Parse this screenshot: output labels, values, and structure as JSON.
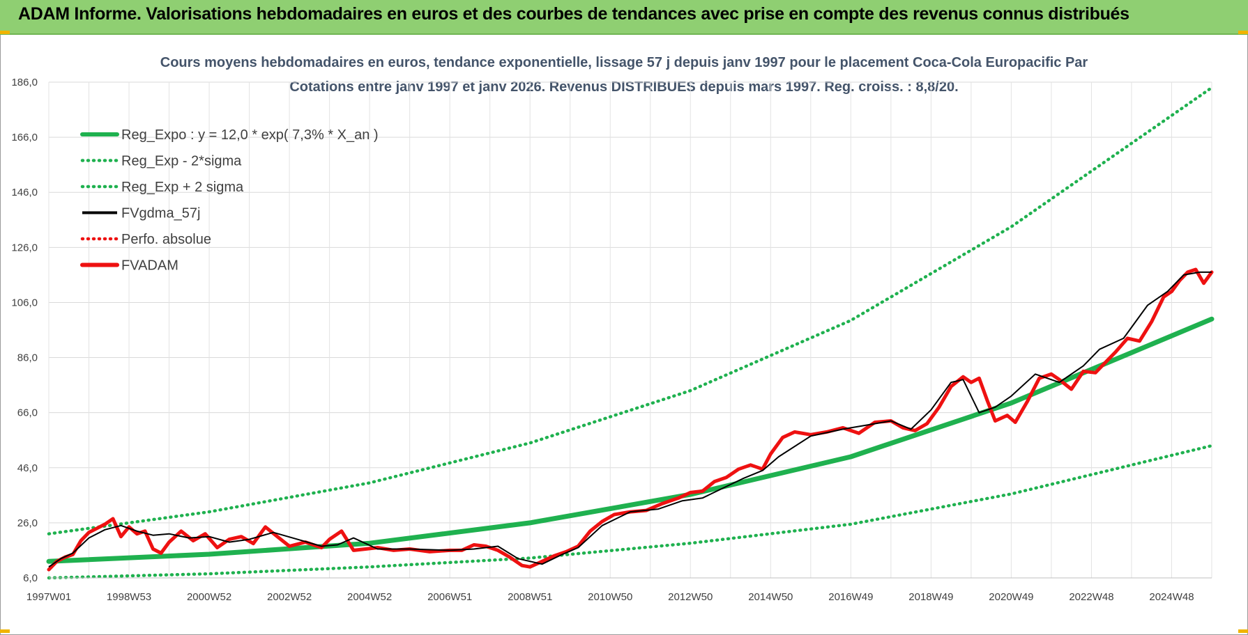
{
  "header": {
    "title": "ADAM Informe. Valorisations hebdomadaires en euros et des courbes de tendances avec prise en compte des revenus connus distribués"
  },
  "colors": {
    "header_bg": "#8fcf72",
    "reg_expo": "#1fb14f",
    "fvgdma": "#000000",
    "fvadam": "#ee1111",
    "grid": "#d9d9d9"
  },
  "chart_data": {
    "type": "line",
    "title_line1": "Cours moyens hebdomadaires en euros, tendance exponentielle, lissage 57 j depuis janv 1997 pour le placement Coca-Cola Europacific Par",
    "title_line2": "Cotations entre janv 1997 et janv 2026. Revenus DISTRIBUES depuis mars 1997.  Reg. croiss. : 8,8/20.",
    "xlabel": "",
    "ylabel": "",
    "xlim": [
      1997.0,
      2026.0
    ],
    "ylim": [
      6.0,
      186.0
    ],
    "y_ticks": [
      "186,0",
      "166,0",
      "146,0",
      "126,0",
      "106,0",
      "86,0",
      "66,0",
      "46,0",
      "26,0",
      "6,0"
    ],
    "x_ticks": [
      "1997W01",
      "1998W53",
      "2000W52",
      "2002W52",
      "2004W52",
      "2006W51",
      "2008W51",
      "2010W50",
      "2012W50",
      "2014W50",
      "2016W49",
      "2018W49",
      "2020W49",
      "2022W48",
      "2024W48"
    ],
    "grid": true,
    "legend_position": "top-left",
    "series": [
      {
        "name": "Reg_Expo : y = 12,0 * exp( 7,3% *  X_an )",
        "style": "solid-thick",
        "color": "#1fb14f",
        "x": [
          1997.0,
          2001.0,
          2005.0,
          2009.0,
          2013.0,
          2017.0,
          2021.0,
          2026.0
        ],
        "y": [
          12.0,
          14.6,
          18.6,
          26.0,
          36.3,
          50.0,
          69.5,
          100.0
        ]
      },
      {
        "name": "Reg_Exp - 2*sigma",
        "style": "dotted",
        "color": "#1fb14f",
        "x": [
          1997.0,
          2001.0,
          2005.0,
          2009.0,
          2013.0,
          2017.0,
          2021.0,
          2026.0
        ],
        "y": [
          6.0,
          7.5,
          10.0,
          13.2,
          18.6,
          25.5,
          36.5,
          54.0
        ]
      },
      {
        "name": "Reg_Exp + 2 sigma",
        "style": "dotted",
        "color": "#1fb14f",
        "x": [
          1997.0,
          2001.0,
          2005.0,
          2009.0,
          2013.0,
          2017.0,
          2021.0,
          2026.0
        ],
        "y": [
          22.0,
          30.0,
          40.5,
          55.0,
          74.0,
          99.5,
          133.5,
          184.0
        ]
      },
      {
        "name": "FVgdma_57j",
        "style": "solid",
        "color": "#000000",
        "x": [
          1997.0,
          1997.3,
          1997.6,
          1998.0,
          1998.4,
          1998.8,
          1999.2,
          1999.6,
          2000.0,
          2000.5,
          2001.0,
          2001.5,
          2002.0,
          2002.6,
          2003.2,
          2003.8,
          2004.2,
          2004.6,
          2005.2,
          2006.0,
          2007.0,
          2007.6,
          2008.2,
          2008.7,
          2009.3,
          2009.8,
          2010.2,
          2010.8,
          2011.5,
          2012.2,
          2012.8,
          2013.3,
          2013.8,
          2014.3,
          2014.8,
          2015.2,
          2016.0,
          2016.8,
          2017.4,
          2018.0,
          2018.5,
          2019.0,
          2019.5,
          2019.8,
          2020.2,
          2020.6,
          2021.0,
          2021.6,
          2022.2,
          2022.8,
          2023.2,
          2023.8,
          2024.4,
          2024.9,
          2025.3,
          2025.7,
          2026.0
        ],
        "y": [
          10.0,
          13.0,
          15.0,
          20.5,
          23.5,
          25.0,
          23.0,
          21.5,
          22.0,
          20.5,
          21.0,
          19.0,
          20.0,
          22.5,
          20.0,
          17.5,
          18.0,
          20.5,
          16.5,
          16.5,
          16.0,
          16.5,
          17.5,
          13.0,
          11.0,
          14.5,
          17.0,
          25.0,
          30.0,
          31.0,
          34.0,
          35.0,
          38.5,
          42.0,
          45.0,
          50.0,
          57.5,
          60.0,
          61.5,
          63.0,
          60.0,
          67.0,
          77.0,
          78.0,
          66.0,
          68.0,
          72.0,
          80.0,
          77.0,
          83.0,
          89.0,
          93.0,
          105.0,
          110.0,
          116.0,
          117.0,
          117.0
        ]
      },
      {
        "name": "Perfo. absolue",
        "style": "dotted",
        "color": "#ee1111",
        "x": [],
        "y": []
      },
      {
        "name": "FVADAM",
        "style": "solid-thick",
        "color": "#ee1111",
        "x": [
          1997.0,
          1997.2,
          1997.4,
          1997.6,
          1997.8,
          1998.0,
          1998.2,
          1998.4,
          1998.6,
          1998.8,
          1999.0,
          1999.2,
          1999.4,
          1999.6,
          1999.8,
          2000.0,
          2000.3,
          2000.6,
          2000.9,
          2001.2,
          2001.5,
          2001.8,
          2002.1,
          2002.4,
          2002.7,
          2003.0,
          2003.4,
          2003.8,
          2004.0,
          2004.3,
          2004.6,
          2004.9,
          2005.2,
          2005.6,
          2006.0,
          2006.5,
          2007.0,
          2007.3,
          2007.6,
          2007.9,
          2008.2,
          2008.5,
          2008.8,
          2009.0,
          2009.3,
          2009.6,
          2009.9,
          2010.2,
          2010.5,
          2010.8,
          2011.1,
          2011.5,
          2011.9,
          2012.3,
          2012.7,
          2013.0,
          2013.3,
          2013.6,
          2013.9,
          2014.2,
          2014.5,
          2014.8,
          2015.0,
          2015.3,
          2015.6,
          2016.0,
          2016.4,
          2016.8,
          2017.2,
          2017.6,
          2018.0,
          2018.3,
          2018.6,
          2018.9,
          2019.2,
          2019.5,
          2019.8,
          2020.0,
          2020.2,
          2020.4,
          2020.6,
          2020.9,
          2021.1,
          2021.4,
          2021.7,
          2022.0,
          2022.2,
          2022.5,
          2022.8,
          2023.1,
          2023.3,
          2023.6,
          2023.9,
          2024.2,
          2024.5,
          2024.8,
          2025.0,
          2025.2,
          2025.4,
          2025.6,
          2025.8,
          2026.0
        ],
        "y": [
          9.0,
          12.0,
          13.5,
          14.5,
          19.5,
          22.5,
          24.0,
          25.5,
          27.5,
          21.0,
          24.5,
          22.0,
          23.0,
          16.5,
          15.0,
          19.0,
          23.0,
          19.5,
          22.0,
          17.0,
          20.0,
          21.0,
          18.5,
          24.5,
          21.0,
          17.5,
          19.0,
          17.0,
          20.0,
          23.0,
          16.0,
          16.5,
          17.0,
          16.0,
          16.5,
          15.5,
          16.0,
          16.0,
          18.0,
          17.5,
          16.0,
          13.5,
          10.5,
          10.0,
          12.0,
          14.0,
          15.5,
          17.5,
          23.0,
          26.5,
          29.0,
          30.0,
          30.5,
          33.0,
          35.0,
          37.0,
          37.5,
          41.0,
          42.5,
          45.5,
          47.0,
          45.5,
          51.0,
          57.0,
          59.0,
          58.0,
          59.0,
          60.5,
          58.5,
          62.5,
          63.0,
          60.5,
          59.5,
          62.0,
          68.0,
          75.5,
          79.0,
          77.0,
          78.5,
          70.5,
          63.0,
          65.0,
          62.5,
          70.0,
          78.5,
          80.0,
          78.0,
          74.5,
          81.0,
          80.5,
          83.5,
          88.0,
          93.0,
          92.0,
          99.0,
          108.0,
          110.0,
          114.0,
          117.0,
          118.0,
          113.0,
          117.0
        ]
      }
    ]
  }
}
